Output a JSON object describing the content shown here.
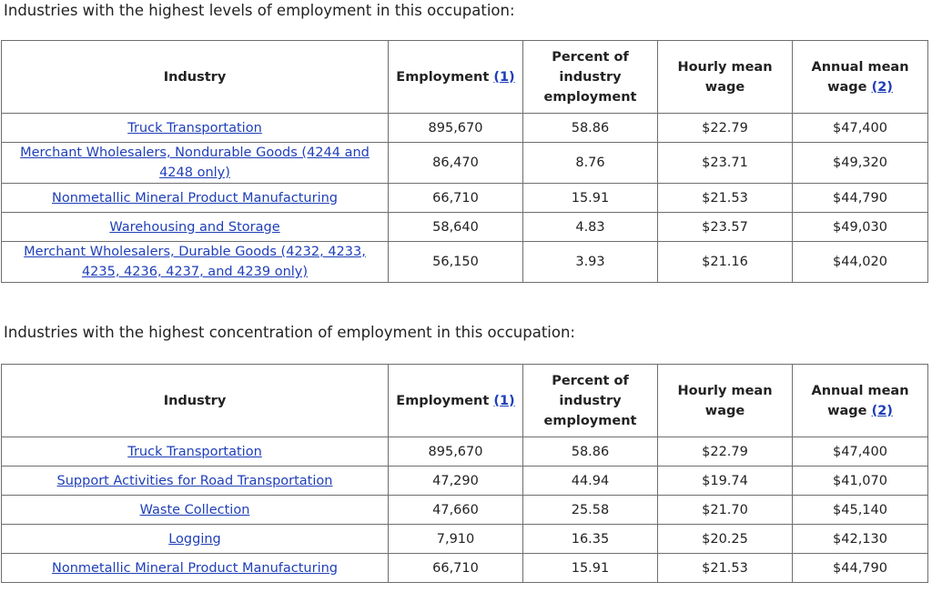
{
  "caption_level": "Industries with the highest levels of employment in this occupation:",
  "caption_concentration": "Industries with the highest concentration of employment in this occupation:",
  "headers": {
    "industry": "Industry",
    "employment": "Employment",
    "employment_note": "(1)",
    "percent": "Percent of industry employment",
    "hourly": "Hourly mean wage",
    "annual": "Annual mean wage",
    "annual_note": "(2)"
  },
  "table_level": [
    {
      "industry": "Truck Transportation",
      "employment": "895,670",
      "percent": "58.86",
      "hourly": "$22.79",
      "annual": "$47,400"
    },
    {
      "industry": "Merchant Wholesalers, Nondurable Goods (4244 and 4248 only)",
      "employment": "86,470",
      "percent": "8.76",
      "hourly": "$23.71",
      "annual": "$49,320"
    },
    {
      "industry": "Nonmetallic Mineral Product Manufacturing",
      "employment": "66,710",
      "percent": "15.91",
      "hourly": "$21.53",
      "annual": "$44,790"
    },
    {
      "industry": "Warehousing and Storage",
      "employment": "58,640",
      "percent": "4.83",
      "hourly": "$23.57",
      "annual": "$49,030"
    },
    {
      "industry": "Merchant Wholesalers, Durable Goods (4232, 4233, 4235, 4236, 4237, and 4239 only)",
      "employment": "56,150",
      "percent": "3.93",
      "hourly": "$21.16",
      "annual": "$44,020"
    }
  ],
  "table_concentration": [
    {
      "industry": "Truck Transportation",
      "employment": "895,670",
      "percent": "58.86",
      "hourly": "$22.79",
      "annual": "$47,400"
    },
    {
      "industry": "Support Activities for Road Transportation",
      "employment": "47,290",
      "percent": "44.94",
      "hourly": "$19.74",
      "annual": "$41,070"
    },
    {
      "industry": "Waste Collection",
      "employment": "47,660",
      "percent": "25.58",
      "hourly": "$21.70",
      "annual": "$45,140"
    },
    {
      "industry": "Logging",
      "employment": "7,910",
      "percent": "16.35",
      "hourly": "$20.25",
      "annual": "$42,130"
    },
    {
      "industry": "Nonmetallic Mineral Product Manufacturing",
      "employment": "66,710",
      "percent": "15.91",
      "hourly": "$21.53",
      "annual": "$44,790"
    }
  ]
}
